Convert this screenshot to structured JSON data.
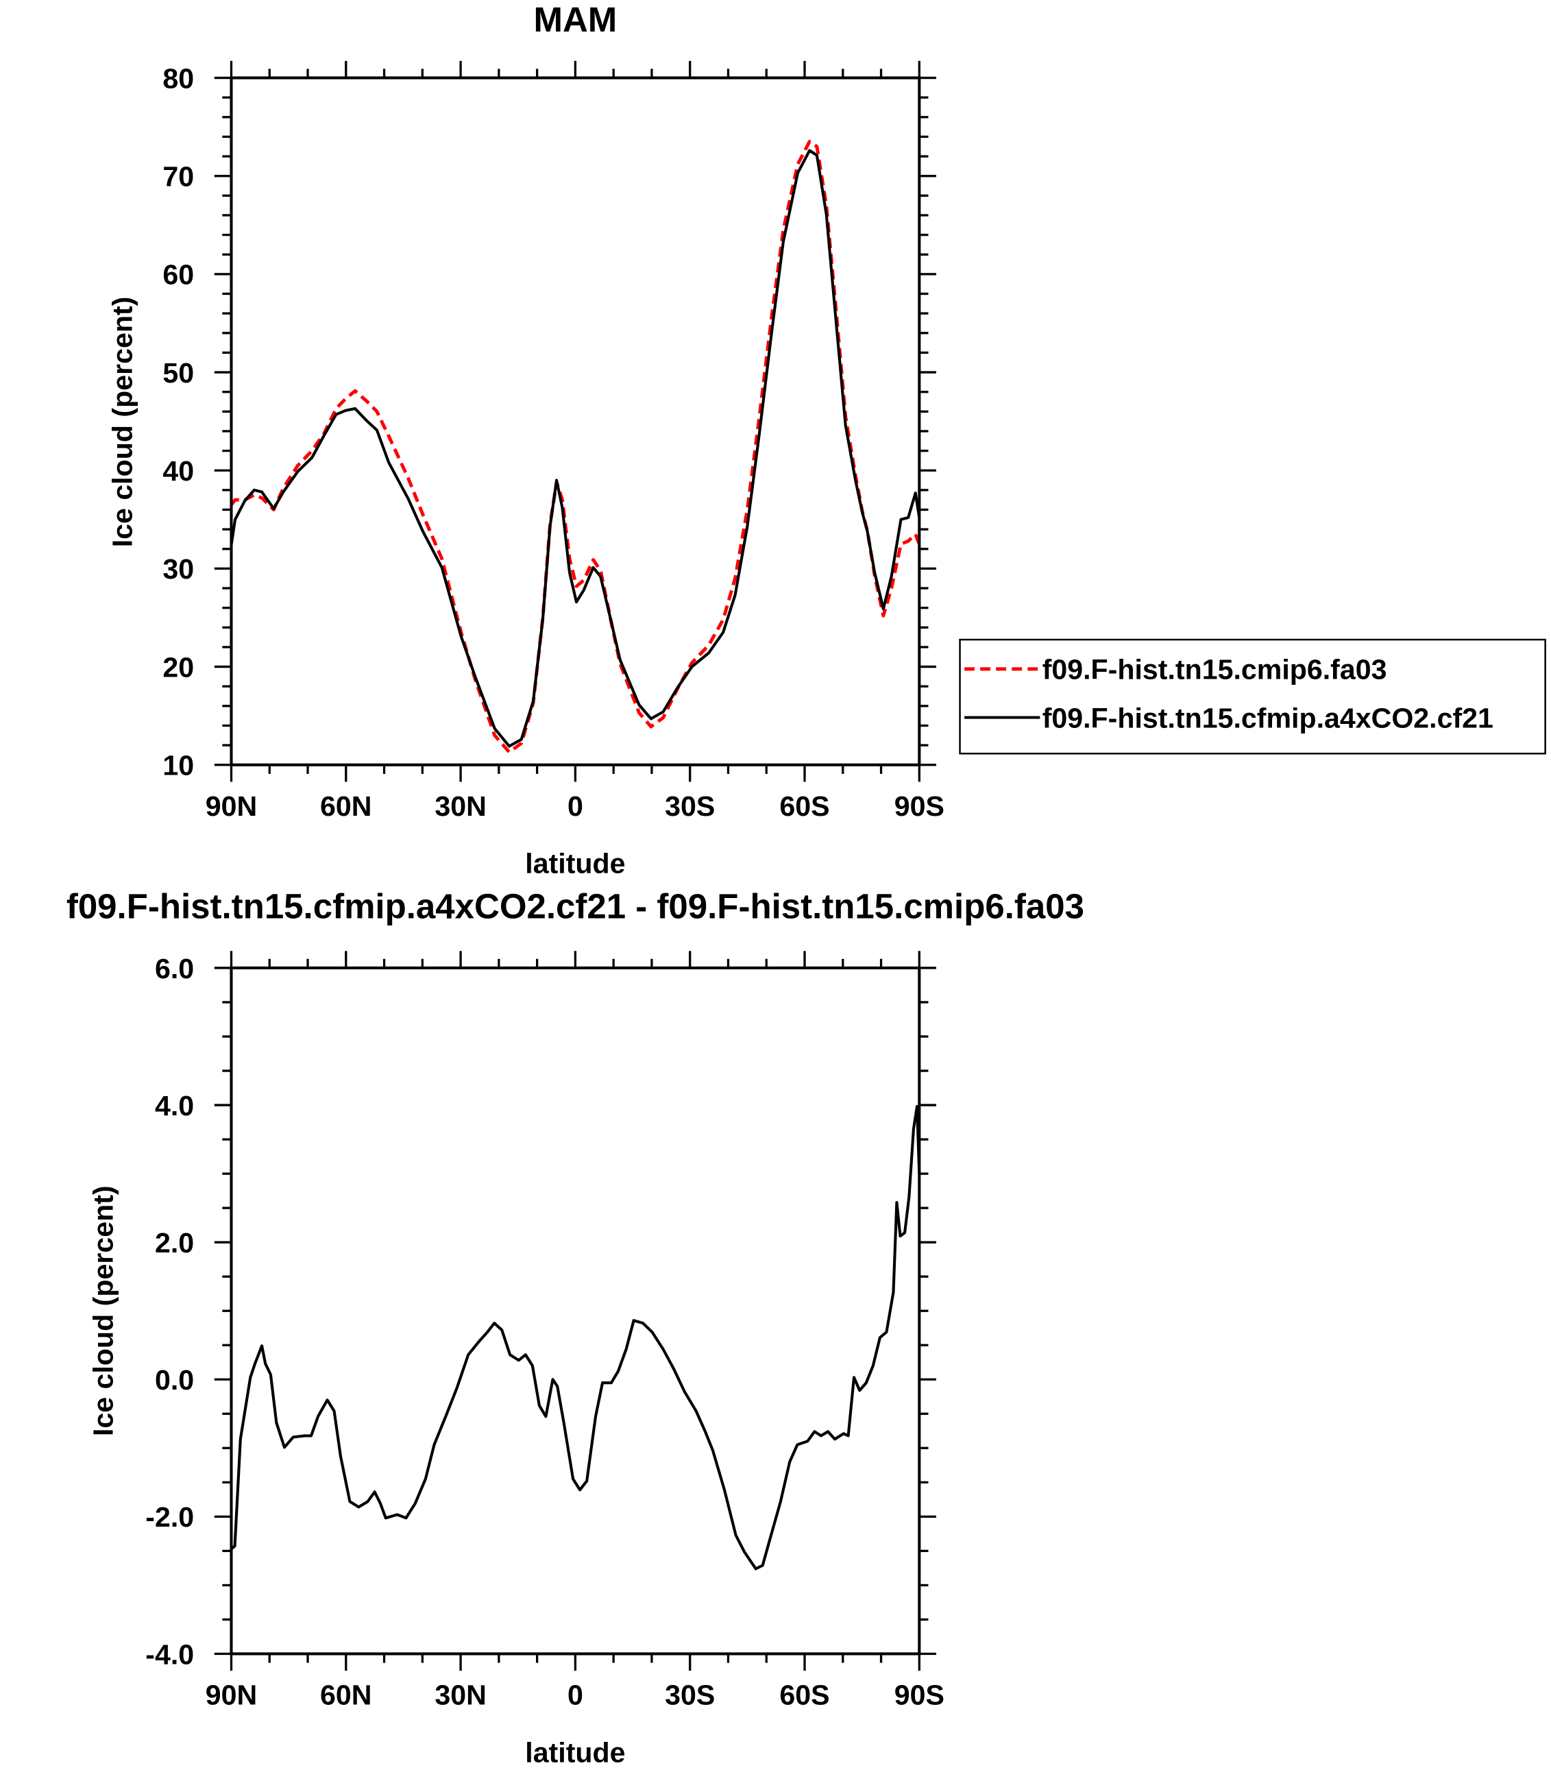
{
  "chart_data": [
    {
      "type": "line",
      "title": "MAM",
      "xlabel": "latitude",
      "ylabel": "Ice cloud (percent)",
      "xlim": [
        90,
        -90
      ],
      "ylim": [
        10,
        80
      ],
      "x_ticks": [
        90,
        60,
        30,
        0,
        -30,
        -60,
        -90
      ],
      "x_tick_labels": [
        "90N",
        "60N",
        "30N",
        "0",
        "30S",
        "60S",
        "90S"
      ],
      "x_minor_step": 10,
      "y_ticks": [
        10,
        20,
        30,
        40,
        50,
        60,
        70,
        80
      ],
      "y_tick_labels": [
        "10",
        "20",
        "30",
        "40",
        "50",
        "60",
        "70",
        "80"
      ],
      "y_minor_step": 2,
      "grid": false,
      "legend_position": "right",
      "x": [
        90,
        89,
        86.5,
        84,
        82,
        78.9,
        76.4,
        72.6,
        68.9,
        65.7,
        62.6,
        60.1,
        57.6,
        54.4,
        51.9,
        48.8,
        43.7,
        39.9,
        34.9,
        29.9,
        26.1,
        21.1,
        17.3,
        14.1,
        11.0,
        8.5,
        6.6,
        4.9,
        3.4,
        1.5,
        -0.3,
        -2.2,
        -4.7,
        -6.6,
        -9.2,
        -11.7,
        -14.2,
        -16.7,
        -19.8,
        -23.0,
        -26.8,
        -30.5,
        -34.9,
        -38.7,
        -41.8,
        -45.0,
        -48.1,
        -51.3,
        -54.4,
        -58.2,
        -61.3,
        -63.2,
        -65.7,
        -68.2,
        -70.7,
        -73.3,
        -75.1,
        -76.4,
        -78.3,
        -80.6,
        -82.7,
        -85.2,
        -87.1,
        -89.0,
        -90
      ],
      "series": [
        {
          "name": "f09.F-hist.tn15.cmip6.fa03",
          "color": "#ff0000",
          "dash": "dashed",
          "values": [
            36.5,
            37,
            37,
            37.5,
            37.2,
            36,
            38.2,
            40.5,
            42,
            43.8,
            46.3,
            47.3,
            48.1,
            47,
            46,
            43.5,
            39.2,
            35.5,
            31,
            23.5,
            18.6,
            13,
            11.3,
            12.2,
            16.3,
            25,
            34.5,
            38.8,
            37,
            31,
            28.2,
            28.8,
            30.9,
            29.8,
            24.9,
            20.3,
            17.8,
            15.3,
            13.9,
            14.8,
            17.8,
            20.4,
            22.2,
            24.8,
            29,
            36,
            45.3,
            55.5,
            64.5,
            71.2,
            73.5,
            73,
            67,
            56.5,
            45.5,
            39.5,
            35.8,
            33.9,
            29.3,
            25.2,
            28,
            32.5,
            32.8,
            33.5,
            32.5
          ]
        },
        {
          "name": "f09.F-hist.tn15.cfmip.a4xCO2.cf21",
          "color": "#000000",
          "dash": "solid",
          "values": [
            32.4,
            35,
            36.9,
            38,
            37.8,
            36.1,
            37.8,
            39.9,
            41.3,
            43.6,
            45.7,
            46.1,
            46.3,
            45.0,
            44.1,
            40.8,
            37.1,
            33.8,
            30.1,
            23.1,
            18.9,
            13.7,
            11.9,
            12.6,
            16.5,
            24.9,
            34.3,
            39.0,
            36.2,
            29.6,
            26.6,
            27.8,
            30.1,
            29.2,
            24.9,
            20.7,
            18.4,
            16.1,
            14.7,
            15.4,
            17.9,
            20.0,
            21.4,
            23.5,
            27.3,
            34.3,
            43.6,
            53.9,
            63.3,
            70.3,
            72.6,
            72.1,
            66.1,
            55.3,
            44.6,
            39.0,
            35.7,
            33.8,
            29.6,
            25.9,
            29.2,
            35.0,
            35.2,
            37.7,
            35.2
          ]
        }
      ]
    },
    {
      "type": "line",
      "title": "f09.F-hist.tn15.cfmip.a4xCO2.cf21 - f09.F-hist.tn15.cmip6.fa03",
      "xlabel": "latitude",
      "ylabel": "Ice cloud (percent)",
      "xlim": [
        90,
        -90
      ],
      "ylim": [
        -4,
        6
      ],
      "x_ticks": [
        90,
        60,
        30,
        0,
        -30,
        -60,
        -90
      ],
      "x_tick_labels": [
        "90N",
        "60N",
        "30N",
        "0",
        "30S",
        "60S",
        "90S"
      ],
      "x_minor_step": 10,
      "y_ticks": [
        -4,
        -2,
        0,
        2,
        4,
        6
      ],
      "y_tick_labels": [
        "-4.0",
        "-2.0",
        "0.0",
        "2.0",
        "4.0",
        "6.0"
      ],
      "y_minor_step": 0.5,
      "grid": false,
      "x": [
        90,
        89.1,
        87.6,
        85,
        83.8,
        82,
        81.1,
        79.7,
        78.2,
        76.1,
        73.8,
        70.8,
        69.1,
        67.3,
        64.9,
        63.1,
        61.4,
        59,
        56.7,
        54.3,
        52.5,
        51,
        49.6,
        46.6,
        44.3,
        41.9,
        39.2,
        36.9,
        33.9,
        31,
        28,
        25.1,
        23,
        21.2,
        19.2,
        17.1,
        14.8,
        13,
        11.2,
        9.4,
        7.7,
        5.9,
        4.7,
        3,
        0.6,
        -1.2,
        -3,
        -5.3,
        -7.1,
        -9.4,
        -11.2,
        -13.3,
        -15.3,
        -17.7,
        -20.1,
        -23,
        -25.7,
        -28.6,
        -31.6,
        -34,
        -36,
        -39,
        -42,
        -44.3,
        -47.2,
        -49,
        -50.8,
        -53.7,
        -56.1,
        -58.1,
        -60.8,
        -62.6,
        -64.3,
        -66.1,
        -67.9,
        -70.2,
        -71.4,
        -72.9,
        -74.4,
        -76.1,
        -77.9,
        -79.7,
        -81.4,
        -83.2,
        -84.1,
        -85,
        -86.2,
        -87.3,
        -88.5,
        -89.4,
        -90
      ],
      "series": [
        {
          "name": "difference",
          "color": "#000000",
          "dash": "solid",
          "values": [
            -2.47,
            -2.43,
            -0.87,
            0.03,
            0.23,
            0.49,
            0.23,
            0.07,
            -0.63,
            -0.99,
            -0.84,
            -0.82,
            -0.82,
            -0.54,
            -0.3,
            -0.46,
            -1.12,
            -1.78,
            -1.86,
            -1.78,
            -1.64,
            -1.81,
            -2.02,
            -1.97,
            -2.02,
            -1.81,
            -1.45,
            -0.95,
            -0.54,
            -0.13,
            0.36,
            0.56,
            0.69,
            0.82,
            0.72,
            0.36,
            0.28,
            0.36,
            0.2,
            -0.38,
            -0.54,
            0,
            -0.1,
            -0.63,
            -1.45,
            -1.61,
            -1.48,
            -0.54,
            -0.05,
            -0.05,
            0.12,
            0.44,
            0.86,
            0.82,
            0.69,
            0.44,
            0.16,
            -0.18,
            -0.46,
            -0.76,
            -1.04,
            -1.61,
            -2.27,
            -2.52,
            -2.76,
            -2.71,
            -2.35,
            -1.78,
            -1.2,
            -0.95,
            -0.9,
            -0.76,
            -0.82,
            -0.76,
            -0.87,
            -0.79,
            -0.82,
            0.03,
            -0.16,
            -0.05,
            0.2,
            0.61,
            0.69,
            1.27,
            2.58,
            2.09,
            2.14,
            2.66,
            3.65,
            3.98,
            2.99
          ]
        }
      ]
    }
  ]
}
